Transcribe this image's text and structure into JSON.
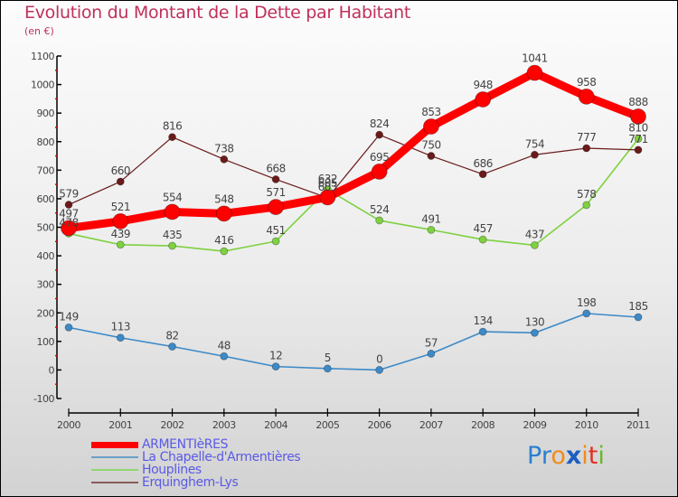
{
  "chart_data": {
    "type": "line",
    "title": "Evolution du Montant de la Dette par Habitant",
    "subtitle": "(en €)",
    "xlabel": "",
    "ylabel": "",
    "x": [
      "2000",
      "2001",
      "2002",
      "2003",
      "2004",
      "2005",
      "2006",
      "2007",
      "2008",
      "2009",
      "2010",
      "2011"
    ],
    "ylim": [
      -100,
      1100
    ],
    "yticks": [
      -100,
      0,
      100,
      200,
      300,
      400,
      500,
      600,
      700,
      800,
      900,
      1000,
      1100
    ],
    "ytick_labels": [
      "-100",
      "0",
      "100",
      "200",
      "300",
      "400",
      "500",
      "600",
      "700",
      "800",
      "900",
      "1000",
      "1100"
    ],
    "grid": false,
    "legend_position": "bottom-left",
    "series": [
      {
        "name": "ARMENTIèRES",
        "color": "#ff0000",
        "values": [
          497,
          521,
          554,
          548,
          571,
          605,
          695,
          853,
          948,
          1041,
          958,
          888
        ]
      },
      {
        "name": "La Chapelle-d'Armentières",
        "color": "#3d8ac8",
        "values": [
          149,
          113,
          82,
          48,
          12,
          5,
          0,
          57,
          134,
          130,
          198,
          185
        ]
      },
      {
        "name": "Houplines",
        "color": "#7ed140",
        "values": [
          478,
          439,
          435,
          416,
          451,
          632,
          524,
          491,
          457,
          437,
          578,
          810
        ]
      },
      {
        "name": "Erquinghem-Lys",
        "color": "#6b1a1a",
        "values": [
          579,
          660,
          816,
          738,
          668,
          603,
          824,
          750,
          686,
          754,
          777,
          771
        ]
      }
    ]
  },
  "branding": {
    "logo_letters": [
      {
        "ch": "P",
        "color": "#2a7fd0"
      },
      {
        "ch": "r",
        "color": "#2a7fd0"
      },
      {
        "ch": "o",
        "color": "#f08a1c"
      },
      {
        "ch": "x",
        "color": "#1a5fc0"
      },
      {
        "ch": "i",
        "color": "#f08a1c"
      },
      {
        "ch": "t",
        "color": "#e03020"
      },
      {
        "ch": "i",
        "color": "#6ab82a"
      }
    ]
  }
}
